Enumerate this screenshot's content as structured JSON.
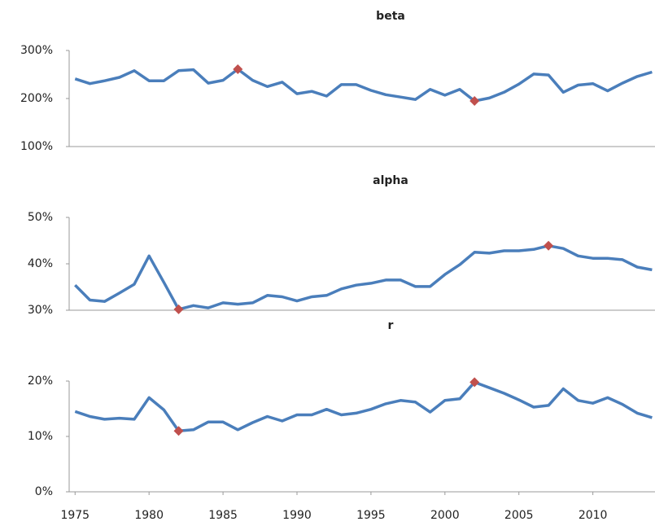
{
  "chart_data": [
    {
      "type": "line",
      "title": "beta",
      "x": [
        1975,
        1976,
        1977,
        1978,
        1979,
        1980,
        1981,
        1982,
        1983,
        1984,
        1985,
        1986,
        1987,
        1988,
        1989,
        1990,
        1991,
        1992,
        1993,
        1994,
        1995,
        1996,
        1997,
        1998,
        1999,
        2000,
        2001,
        2002,
        2003,
        2004,
        2005,
        2006,
        2007,
        2008,
        2009,
        2010,
        2011,
        2012,
        2013,
        2014
      ],
      "series": [
        {
          "color": "#4a7ebb",
          "values": [
            241,
            231,
            237,
            244,
            258,
            237,
            237,
            258,
            260,
            232,
            238,
            261,
            238,
            225,
            234,
            210,
            215,
            205,
            229,
            229,
            217,
            208,
            203,
            198,
            219,
            207,
            219,
            195,
            201,
            213,
            230,
            251,
            249,
            213,
            228,
            231,
            216,
            232,
            246,
            255
          ]
        }
      ],
      "highlight_x": [
        1986,
        2002
      ],
      "highlight_color": "#c0504d",
      "xlim": [
        1974.6,
        2014.2
      ],
      "ylim": [
        100,
        300
      ],
      "yticks": [
        {
          "value": 100,
          "label": "100%"
        },
        {
          "value": 200,
          "label": "200%"
        },
        {
          "value": 300,
          "label": "300%"
        }
      ]
    },
    {
      "type": "line",
      "title": "alpha",
      "x": [
        1975,
        1976,
        1977,
        1978,
        1979,
        1980,
        1981,
        1982,
        1983,
        1984,
        1985,
        1986,
        1987,
        1988,
        1989,
        1990,
        1991,
        1992,
        1993,
        1994,
        1995,
        1996,
        1997,
        1998,
        1999,
        2000,
        2001,
        2002,
        2003,
        2004,
        2005,
        2006,
        2007,
        2008,
        2009,
        2010,
        2011,
        2012,
        2013,
        2014
      ],
      "series": [
        {
          "color": "#4a7ebb",
          "values": [
            35.4,
            32.2,
            31.9,
            33.7,
            35.6,
            41.7,
            36,
            30.2,
            31.0,
            30.5,
            31.6,
            31.3,
            31.6,
            33.2,
            32.9,
            32.0,
            32.9,
            33.2,
            34.6,
            35.4,
            35.8,
            36.5,
            36.5,
            35.1,
            35.1,
            37.7,
            39.8,
            42.5,
            42.3,
            42.8,
            42.8,
            43.1,
            43.9,
            43.3,
            41.7,
            41.2,
            41.2,
            40.9,
            39.3,
            38.7
          ]
        }
      ],
      "highlight_x": [
        1982,
        2007
      ],
      "highlight_color": "#c0504d",
      "xlim": [
        1974.6,
        2014.2
      ],
      "ylim": [
        30,
        50
      ],
      "yticks": [
        {
          "value": 30,
          "label": "30%"
        },
        {
          "value": 40,
          "label": "40%"
        },
        {
          "value": 50,
          "label": "50%"
        }
      ]
    },
    {
      "type": "line",
      "title": "r",
      "x": [
        1975,
        1976,
        1977,
        1978,
        1979,
        1980,
        1981,
        1982,
        1983,
        1984,
        1985,
        1986,
        1987,
        1988,
        1989,
        1990,
        1991,
        1992,
        1993,
        1994,
        1995,
        1996,
        1997,
        1998,
        1999,
        2000,
        2001,
        2002,
        2003,
        2004,
        2005,
        2006,
        2007,
        2008,
        2009,
        2010,
        2011,
        2012,
        2013,
        2014
      ],
      "series": [
        {
          "color": "#4a7ebb",
          "values": [
            14.5,
            13.6,
            13.1,
            13.3,
            13.1,
            17.0,
            14.8,
            11.0,
            11.2,
            12.6,
            12.6,
            11.2,
            12.5,
            13.6,
            12.8,
            13.9,
            13.9,
            14.9,
            13.9,
            14.2,
            14.9,
            15.9,
            16.5,
            16.2,
            14.4,
            16.5,
            16.8,
            19.8,
            18.8,
            17.8,
            16.6,
            15.3,
            15.6,
            18.6,
            16.5,
            16.0,
            17.0,
            15.8,
            14.2,
            13.4
          ]
        }
      ],
      "highlight_x": [
        1982,
        2002
      ],
      "highlight_color": "#c0504d",
      "xlim": [
        1974.6,
        2014.2
      ],
      "ylim": [
        0,
        20
      ],
      "yticks": [
        {
          "value": 0,
          "label": "0%"
        },
        {
          "value": 10,
          "label": "10%"
        },
        {
          "value": 20,
          "label": "20%"
        }
      ],
      "xticks": [
        1975,
        1980,
        1985,
        1990,
        1995,
        2000,
        2005,
        2010
      ]
    }
  ]
}
